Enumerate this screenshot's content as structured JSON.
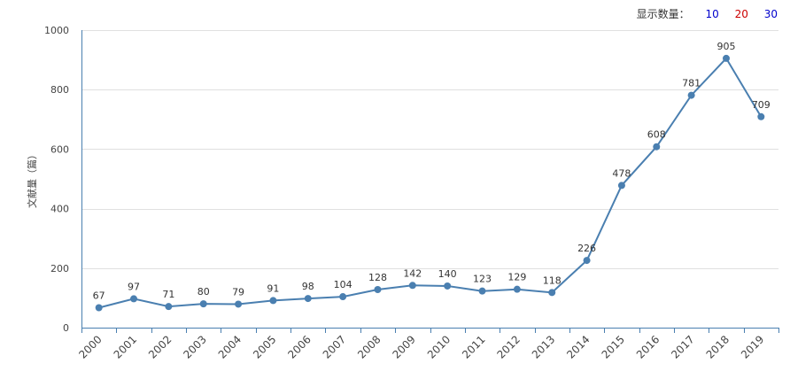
{
  "controls": {
    "label": "显示数量：",
    "options": [
      {
        "label": "10",
        "color": "#0000cc"
      },
      {
        "label": "20",
        "color": "#cc0000"
      },
      {
        "label": "30",
        "color": "#0000cc"
      }
    ]
  },
  "chart_data": {
    "type": "line",
    "title": "",
    "xlabel": "",
    "ylabel": "文献量（篇）",
    "ylim": [
      0,
      1000
    ],
    "yticks": [
      0,
      200,
      400,
      600,
      800,
      1000
    ],
    "grid": true,
    "line_color": "#4a7fb0",
    "categories": [
      "2000",
      "2001",
      "2002",
      "2003",
      "2004",
      "2005",
      "2006",
      "2007",
      "2008",
      "2009",
      "2010",
      "2011",
      "2012",
      "2013",
      "2014",
      "2015",
      "2016",
      "2017",
      "2018",
      "2019"
    ],
    "series": [
      {
        "values": [
          67,
          97,
          71,
          80,
          79,
          91,
          98,
          104,
          128,
          142,
          140,
          123,
          129,
          118,
          226,
          478,
          608,
          781,
          905,
          709
        ],
        "show_labels": true
      }
    ]
  }
}
